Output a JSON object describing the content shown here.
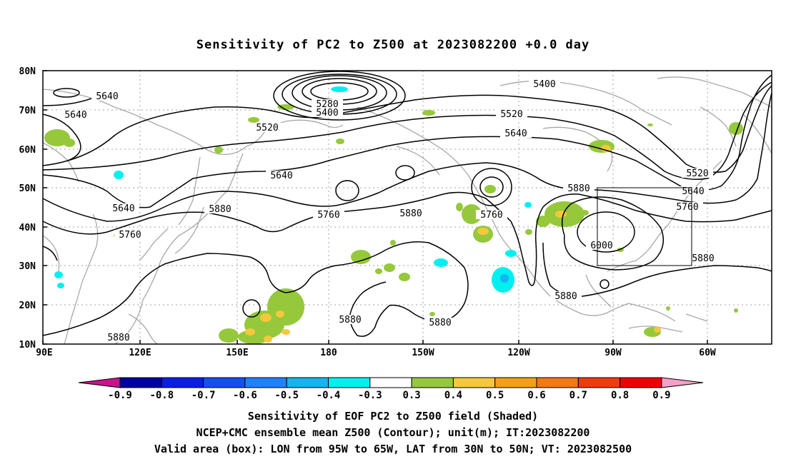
{
  "title": "Sensitivity of PC2 to Z500 at 2023082200 +0.0 day",
  "lat_ticks": [
    "80N",
    "70N",
    "60N",
    "50N",
    "40N",
    "30N",
    "20N",
    "10N"
  ],
  "lon_ticks": [
    "90E",
    "120E",
    "150E",
    "180",
    "150W",
    "120W",
    "90W",
    "60W"
  ],
  "contour_labels": [
    "5640",
    "5640",
    "5280",
    "5400",
    "5400",
    "5520",
    "5520",
    "5640",
    "5640",
    "5640",
    "5520",
    "5640",
    "5760",
    "5760",
    "5760",
    "5880",
    "5880",
    "5760",
    "5880",
    "6000",
    "5880",
    "5880",
    "5880",
    "5880",
    "5880"
  ],
  "colorbar": {
    "labels": [
      "-0.9",
      "-0.8",
      "-0.7",
      "-0.6",
      "-0.5",
      "-0.4",
      "-0.3",
      "0.3",
      "0.4",
      "0.5",
      "0.6",
      "0.7",
      "0.8",
      "0.9"
    ],
    "colors": [
      "#0000a0",
      "#0a1ee6",
      "#1450f0",
      "#1e82ff",
      "#14b4f0",
      "#00f0f0",
      "#ffffff",
      "#96c83c",
      "#f5c83c",
      "#f5a014",
      "#f57814",
      "#f03c0a",
      "#f00000"
    ],
    "low_end_color": "#c8148c",
    "high_end_color": "#f5a0c8"
  },
  "caption": {
    "line1": "Sensitivity of EOF PC2 to Z500 field (Shaded)",
    "line2": "NCEP+CMC ensemble mean Z500 (Contour); unit(m); IT:2023082200",
    "line3": "Valid area (box): LON from 95W to 65W, LAT from 30N to 50N; VT: 2023082500"
  },
  "valid_box": {
    "lon_west": "95W",
    "lon_east": "65W",
    "lat_south": "30N",
    "lat_north": "50N"
  }
}
